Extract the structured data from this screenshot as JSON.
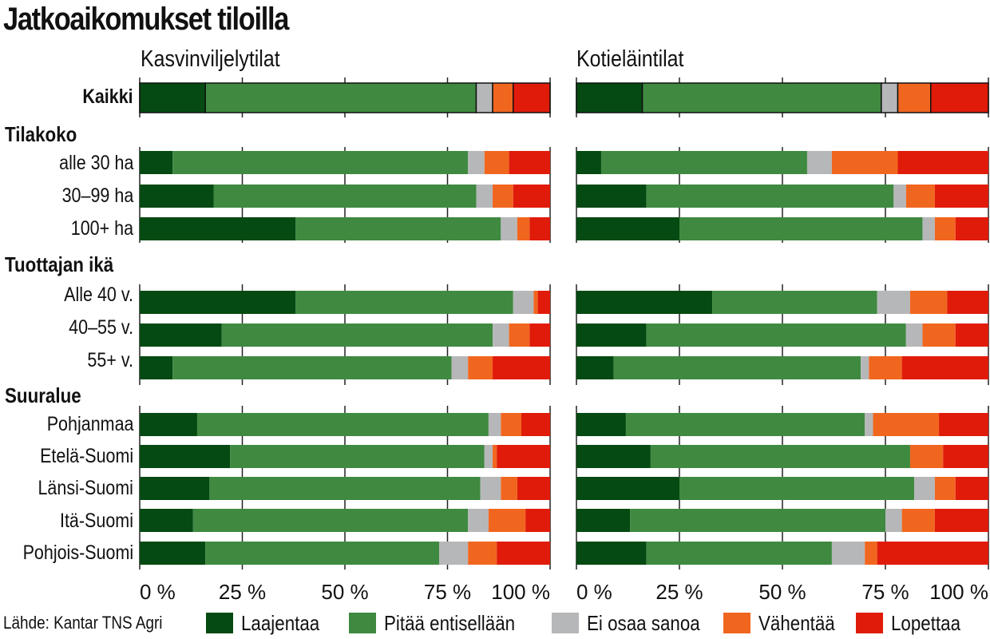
{
  "chart_data": {
    "type": "bar",
    "orientation": "horizontal",
    "stacked": true,
    "title": "Jatkoaikomukset tiloilla",
    "source": "Lähde: Kantar TNS Agri",
    "xlim": [
      0,
      100
    ],
    "x_ticks": [
      "0 %",
      "25 %",
      "50 %",
      "75 %",
      "100 %"
    ],
    "legend_position": "bottom",
    "series": [
      {
        "name": "Laajentaa",
        "color": "#044a12"
      },
      {
        "name": "Pitää entisellään",
        "color": "#3f8a40"
      },
      {
        "name": "Ei osaa sanoa",
        "color": "#b6b7b9"
      },
      {
        "name": "Vähentää",
        "color": "#f1661f"
      },
      {
        "name": "Lopettaa",
        "color": "#e01b0a"
      }
    ],
    "groups": [
      {
        "label": "",
        "rows": [
          {
            "label": "Kaikki",
            "bold": true
          }
        ]
      },
      {
        "label": "Tilakoko",
        "rows": [
          {
            "label": "alle 30 ha"
          },
          {
            "label": "30–99 ha"
          },
          {
            "label": "100+ ha"
          }
        ]
      },
      {
        "label": "Tuottajan ikä",
        "rows": [
          {
            "label": "Alle 40 v."
          },
          {
            "label": "40–55 v."
          },
          {
            "label": "55+ v."
          }
        ]
      },
      {
        "label": "Suuralue",
        "rows": [
          {
            "label": "Pohjanmaa"
          },
          {
            "label": "Etelä-Suomi"
          },
          {
            "label": "Länsi-Suomi"
          },
          {
            "label": "Itä-Suomi"
          },
          {
            "label": "Pohjois-Suomi"
          }
        ]
      }
    ],
    "panels": [
      {
        "title": "Kasvinviljelytilat",
        "values": [
          [
            16,
            66,
            4,
            5,
            9
          ],
          [
            8,
            72,
            4,
            6,
            10
          ],
          [
            18,
            64,
            4,
            5,
            9
          ],
          [
            38,
            50,
            4,
            3,
            5
          ],
          [
            38,
            53,
            5,
            1,
            3
          ],
          [
            20,
            66,
            4,
            5,
            5
          ],
          [
            8,
            68,
            4,
            6,
            14
          ],
          [
            14,
            71,
            3,
            5,
            7
          ],
          [
            22,
            62,
            2,
            1,
            13
          ],
          [
            17,
            66,
            5,
            4,
            8
          ],
          [
            13,
            67,
            5,
            9,
            6
          ],
          [
            16,
            57,
            7,
            7,
            13
          ]
        ]
      },
      {
        "title": "Kotieläintilat",
        "values": [
          [
            16,
            58,
            4,
            8,
            14
          ],
          [
            6,
            50,
            6,
            16,
            22
          ],
          [
            17,
            60,
            3,
            7,
            13
          ],
          [
            25,
            59,
            3,
            5,
            8
          ],
          [
            33,
            40,
            8,
            9,
            10
          ],
          [
            17,
            63,
            4,
            8,
            8
          ],
          [
            9,
            60,
            2,
            8,
            21
          ],
          [
            12,
            58,
            2,
            16,
            12
          ],
          [
            18,
            63,
            0,
            8,
            11
          ],
          [
            25,
            57,
            5,
            5,
            8
          ],
          [
            13,
            62,
            4,
            8,
            13
          ],
          [
            17,
            45,
            8,
            3,
            27
          ]
        ]
      }
    ]
  }
}
